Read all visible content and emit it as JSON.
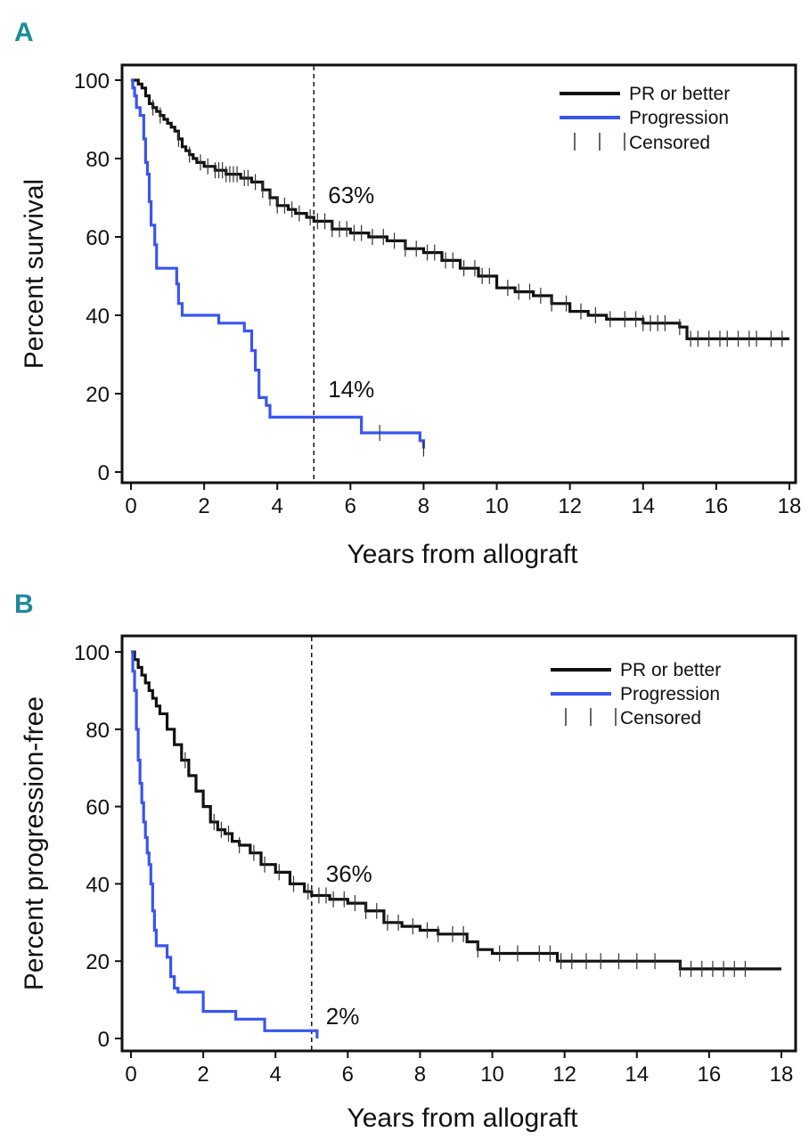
{
  "colors": {
    "pr": "#111111",
    "prog": "#3a55ee",
    "panel_letter": "#1a8a9a",
    "frame": "#111111"
  },
  "chart_data": [
    {
      "panel": "A",
      "type": "line",
      "subtype": "kaplan-meier",
      "xlabel": "Years from allograft",
      "ylabel": "Percent survival",
      "xlim": [
        0,
        18
      ],
      "ylim": [
        0,
        100
      ],
      "x_ticks": [
        "0",
        "2",
        "4",
        "6",
        "8",
        "10",
        "12",
        "14",
        "16",
        "18"
      ],
      "y_ticks": [
        "0",
        "20",
        "40",
        "60",
        "80",
        "100"
      ],
      "reference_line_x": 5,
      "legend": {
        "position": "top-right",
        "items": [
          "PR or better",
          "Progression",
          "Censored"
        ]
      },
      "annotations": [
        {
          "text": "63%",
          "series": "PR or better"
        },
        {
          "text": "14%",
          "series": "Progression"
        }
      ],
      "series": [
        {
          "name": "PR or better",
          "color_key": "pr",
          "points": [
            [
              0,
              100
            ],
            [
              0.1,
              100
            ],
            [
              0.2,
              99
            ],
            [
              0.3,
              98
            ],
            [
              0.4,
              96
            ],
            [
              0.5,
              94
            ],
            [
              0.6,
              93
            ],
            [
              0.7,
              92
            ],
            [
              0.8,
              91
            ],
            [
              0.9,
              90
            ],
            [
              1,
              89
            ],
            [
              1.1,
              88
            ],
            [
              1.2,
              87
            ],
            [
              1.3,
              85
            ],
            [
              1.4,
              83
            ],
            [
              1.5,
              82
            ],
            [
              1.6,
              81
            ],
            [
              1.7,
              80
            ],
            [
              1.8,
              79
            ],
            [
              2,
              78
            ],
            [
              2.3,
              77
            ],
            [
              2.6,
              76
            ],
            [
              3,
              75
            ],
            [
              3.3,
              74
            ],
            [
              3.6,
              72
            ],
            [
              3.8,
              70
            ],
            [
              4,
              68
            ],
            [
              4.3,
              67
            ],
            [
              4.5,
              66
            ],
            [
              4.8,
              65
            ],
            [
              5,
              64
            ],
            [
              5.5,
              62
            ],
            [
              6,
              61
            ],
            [
              6.5,
              60
            ],
            [
              7,
              59
            ],
            [
              7.5,
              57
            ],
            [
              8,
              56
            ],
            [
              8.5,
              54
            ],
            [
              9,
              52
            ],
            [
              9.5,
              50
            ],
            [
              10,
              47
            ],
            [
              10.5,
              46
            ],
            [
              11,
              45
            ],
            [
              11.5,
              43
            ],
            [
              12,
              41
            ],
            [
              12.5,
              40
            ],
            [
              13,
              39
            ],
            [
              14,
              38
            ],
            [
              15,
              37
            ],
            [
              15.2,
              34
            ],
            [
              18,
              34
            ]
          ],
          "censored_x": [
            0.6,
            0.8,
            1.3,
            1.6,
            1.9,
            2.1,
            2.3,
            2.4,
            2.5,
            2.6,
            2.7,
            2.8,
            2.9,
            3.1,
            3.2,
            3.4,
            3.6,
            3.8,
            4.0,
            4.2,
            4.4,
            4.6,
            4.9,
            5.1,
            5.3,
            5.5,
            5.7,
            5.9,
            6.1,
            6.3,
            6.6,
            6.9,
            7.2,
            7.5,
            7.8,
            8.1,
            8.3,
            8.6,
            8.8,
            9.1,
            9.4,
            9.6,
            9.8,
            10.3,
            10.6,
            10.9,
            11.2,
            11.5,
            11.9,
            12.3,
            12.7,
            13.1,
            13.5,
            13.8,
            14.0,
            14.2,
            14.4,
            14.6,
            15.0,
            15.3,
            15.5,
            15.8,
            16.1,
            16.3,
            16.6,
            16.9,
            17.1,
            17.5,
            17.8
          ]
        },
        {
          "name": "Progression",
          "color_key": "prog",
          "points": [
            [
              0,
              100
            ],
            [
              0.05,
              98
            ],
            [
              0.1,
              96
            ],
            [
              0.15,
              93
            ],
            [
              0.25,
              91
            ],
            [
              0.35,
              85
            ],
            [
              0.4,
              79
            ],
            [
              0.45,
              76
            ],
            [
              0.5,
              69
            ],
            [
              0.55,
              63
            ],
            [
              0.65,
              58
            ],
            [
              0.7,
              52
            ],
            [
              1.25,
              48
            ],
            [
              1.3,
              43
            ],
            [
              1.4,
              40
            ],
            [
              2.4,
              38
            ],
            [
              3.1,
              36
            ],
            [
              3.3,
              31
            ],
            [
              3.4,
              26
            ],
            [
              3.5,
              19
            ],
            [
              3.7,
              17
            ],
            [
              3.8,
              14
            ],
            [
              6.3,
              10
            ],
            [
              7.9,
              8
            ],
            [
              8,
              6
            ]
          ],
          "censored_x": [
            6.8,
            8.0
          ]
        },
        {
          "name": "Censored",
          "marker": "tick"
        }
      ]
    },
    {
      "panel": "B",
      "type": "line",
      "subtype": "kaplan-meier",
      "xlabel": "Years from allograft",
      "ylabel": "Percent progression-free",
      "xlim": [
        0,
        18
      ],
      "ylim": [
        0,
        100
      ],
      "x_ticks": [
        "0",
        "2",
        "4",
        "6",
        "8",
        "10",
        "12",
        "14",
        "16",
        "18"
      ],
      "y_ticks": [
        "0",
        "20",
        "40",
        "60",
        "80",
        "100"
      ],
      "reference_line_x": 5,
      "legend": {
        "position": "top-right",
        "items": [
          "PR or better",
          "Progression",
          "Censored"
        ]
      },
      "annotations": [
        {
          "text": "36%",
          "series": "PR or better"
        },
        {
          "text": "2%",
          "series": "Progression"
        }
      ],
      "series": [
        {
          "name": "PR or better",
          "color_key": "pr",
          "points": [
            [
              0,
              100
            ],
            [
              0.1,
              98
            ],
            [
              0.2,
              96
            ],
            [
              0.3,
              94
            ],
            [
              0.4,
              92
            ],
            [
              0.5,
              90
            ],
            [
              0.6,
              88
            ],
            [
              0.7,
              86
            ],
            [
              0.8,
              84
            ],
            [
              1,
              80
            ],
            [
              1.2,
              76
            ],
            [
              1.4,
              72
            ],
            [
              1.6,
              68
            ],
            [
              1.8,
              64
            ],
            [
              2,
              60
            ],
            [
              2.2,
              56
            ],
            [
              2.4,
              54
            ],
            [
              2.6,
              53
            ],
            [
              2.8,
              51
            ],
            [
              3,
              50
            ],
            [
              3.3,
              48
            ],
            [
              3.6,
              45
            ],
            [
              4,
              43
            ],
            [
              4.4,
              40
            ],
            [
              4.8,
              38
            ],
            [
              5,
              37
            ],
            [
              5.5,
              36
            ],
            [
              6,
              35
            ],
            [
              6.5,
              33
            ],
            [
              7,
              30
            ],
            [
              7.5,
              29
            ],
            [
              8,
              28
            ],
            [
              8.5,
              27
            ],
            [
              9,
              27
            ],
            [
              9.3,
              25
            ],
            [
              9.6,
              23
            ],
            [
              10,
              22
            ],
            [
              11,
              22
            ],
            [
              11.8,
              20
            ],
            [
              13,
              20
            ],
            [
              15.2,
              18
            ],
            [
              18,
              18
            ]
          ],
          "censored_x": [
            1.5,
            2.3,
            2.5,
            2.7,
            3.0,
            3.4,
            3.7,
            4.1,
            4.5,
            4.9,
            5.2,
            5.4,
            5.6,
            5.9,
            6.2,
            6.5,
            6.8,
            7.1,
            7.4,
            7.8,
            8.2,
            8.5,
            8.9,
            9.2,
            9.6,
            10.2,
            10.7,
            11.3,
            11.6,
            11.9,
            12.2,
            12.6,
            13.0,
            13.5,
            14.0,
            14.5,
            15.2,
            15.5,
            15.8,
            16.1,
            16.4,
            16.7,
            17.0
          ]
        },
        {
          "name": "Progression",
          "color_key": "prog",
          "points": [
            [
              0,
              100
            ],
            [
              0.05,
              95
            ],
            [
              0.1,
              90
            ],
            [
              0.15,
              80
            ],
            [
              0.2,
              72
            ],
            [
              0.25,
              66
            ],
            [
              0.3,
              61
            ],
            [
              0.35,
              56
            ],
            [
              0.4,
              52
            ],
            [
              0.45,
              48
            ],
            [
              0.5,
              45
            ],
            [
              0.55,
              40
            ],
            [
              0.6,
              33
            ],
            [
              0.65,
              28
            ],
            [
              0.7,
              24
            ],
            [
              1,
              21
            ],
            [
              1.1,
              16
            ],
            [
              1.2,
              13
            ],
            [
              1.3,
              12
            ],
            [
              2,
              7
            ],
            [
              2.9,
              5
            ],
            [
              3.7,
              2
            ],
            [
              5.1,
              2
            ],
            [
              5.15,
              0
            ]
          ],
          "censored_x": []
        },
        {
          "name": "Censored",
          "marker": "tick"
        }
      ]
    }
  ]
}
